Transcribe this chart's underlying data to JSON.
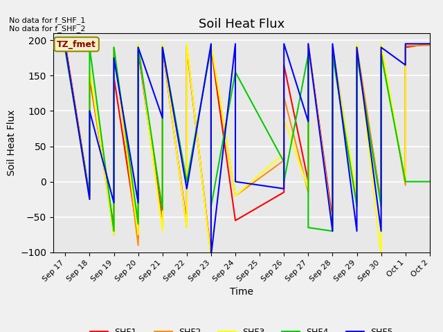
{
  "title": "Soil Heat Flux",
  "xlabel": "Time",
  "ylabel": "Soil Heat Flux",
  "ylim": [
    -100,
    210
  ],
  "yticks": [
    -100,
    -50,
    0,
    50,
    100,
    150,
    200
  ],
  "annotation_text": "No data for f_SHF_1\nNo data for f_SHF_2",
  "legend_label": "TZ_fmet",
  "x_labels": [
    "Sep 17",
    "Sep 18",
    "Sep 19",
    "Sep 20",
    "Sep 21",
    "Sep 22",
    "Sep 23",
    "Sep 24",
    "Sep 25",
    "Sep 26",
    "Sep 27",
    "Sep 28",
    "Sep 29",
    "Sep 30",
    "Oct 1",
    "Oct 2"
  ],
  "series": {
    "SHF1": {
      "color": "#ff0000",
      "x": [
        0,
        1,
        1,
        2,
        2,
        3,
        3,
        4,
        4,
        5,
        5,
        6,
        6,
        7,
        9,
        9,
        10,
        10,
        11,
        11,
        12,
        12,
        13,
        13,
        14,
        14,
        15
      ],
      "y": [
        195,
        -20,
        148,
        -65,
        148,
        -80,
        185,
        -55,
        190,
        -60,
        190,
        -105,
        190,
        -55,
        -15,
        165,
        0,
        195,
        -55,
        185,
        -30,
        185,
        -30,
        185,
        0,
        190,
        195
      ]
    },
    "SHF2": {
      "color": "#ff8c00",
      "x": [
        0,
        1,
        1,
        2,
        2,
        3,
        3,
        4,
        4,
        5,
        5,
        6,
        6,
        7,
        9,
        9,
        10,
        10,
        11,
        11,
        12,
        12,
        13,
        13,
        14,
        14,
        15
      ],
      "y": [
        190,
        -25,
        155,
        -75,
        190,
        -90,
        192,
        -65,
        192,
        -65,
        192,
        -105,
        192,
        -20,
        30,
        120,
        -15,
        192,
        -65,
        190,
        -25,
        192,
        -30,
        192,
        -5,
        192,
        193
      ]
    },
    "SHF3": {
      "color": "#ffff00",
      "x": [
        0,
        1,
        1,
        2,
        2,
        3,
        3,
        4,
        4,
        5,
        5,
        6,
        6,
        7,
        9,
        9,
        10,
        10,
        11,
        11,
        12,
        12,
        13,
        13,
        14,
        14,
        15
      ],
      "y": [
        190,
        -25,
        160,
        -75,
        185,
        -75,
        195,
        -70,
        195,
        -65,
        195,
        -110,
        195,
        -20,
        40,
        90,
        -10,
        195,
        -65,
        185,
        -20,
        195,
        -105,
        195,
        0,
        195,
        195
      ]
    },
    "SHF4": {
      "color": "#00cc00",
      "x": [
        0,
        1,
        1,
        2,
        2,
        3,
        3,
        4,
        4,
        5,
        6,
        6,
        7,
        9,
        9,
        10,
        10,
        11,
        11,
        12,
        12,
        13,
        13,
        14,
        15
      ],
      "y": [
        185,
        -20,
        190,
        -70,
        190,
        -60,
        190,
        -40,
        190,
        0,
        190,
        -35,
        155,
        28,
        0,
        180,
        -65,
        -70,
        180,
        -35,
        180,
        -35,
        180,
        0,
        0
      ]
    },
    "SHF5": {
      "color": "#0000ff",
      "x": [
        0,
        1,
        1,
        2,
        2,
        3,
        3,
        4,
        4,
        5,
        5,
        6,
        6,
        7,
        7,
        9,
        9,
        10,
        10,
        11,
        11,
        12,
        12,
        13,
        13,
        14,
        14,
        15
      ],
      "y": [
        190,
        -25,
        100,
        -30,
        175,
        -30,
        190,
        90,
        190,
        -10,
        -10,
        195,
        -105,
        195,
        0,
        -10,
        195,
        85,
        195,
        -70,
        195,
        -70,
        190,
        -70,
        190,
        165,
        195,
        195
      ]
    }
  },
  "background_color": "#e8e8e8"
}
